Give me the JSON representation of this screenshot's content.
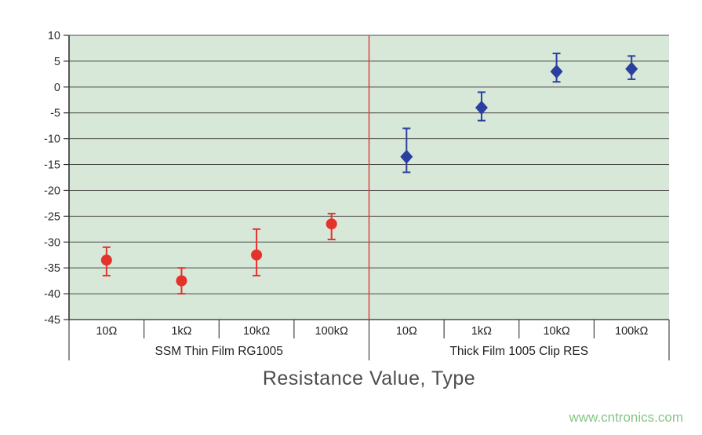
{
  "chart_data": {
    "type": "scatter",
    "title": "",
    "xlabel": "Resistance Value, Type",
    "ylabel": "",
    "ylim": [
      -45,
      10
    ],
    "ytick_step": 5,
    "grid": true,
    "plot_bg": "#d7e8d8",
    "grid_color": "#4a4a4a",
    "axis_color": "#333333",
    "categories": [
      "10Ω",
      "1kΩ",
      "10kΩ",
      "100kΩ",
      "10Ω",
      "1kΩ",
      "10kΩ",
      "100kΩ"
    ],
    "groups": [
      {
        "label": "SSM Thin Film RG1005",
        "start": 0,
        "end": 4
      },
      {
        "label": "Thick Film 1005 Clip RES",
        "start": 4,
        "end": 8
      }
    ],
    "separator": {
      "x": 4,
      "color": "#d94040"
    },
    "series": [
      {
        "name": "SSM Thin Film RG1005",
        "marker": "circle",
        "color": "#e5322b",
        "points": [
          {
            "x": 0,
            "y": -33.5,
            "err_up": 2.5,
            "err_down": 3.0
          },
          {
            "x": 1,
            "y": -37.5,
            "err_up": 2.5,
            "err_down": 2.5
          },
          {
            "x": 2,
            "y": -32.5,
            "err_up": 5.0,
            "err_down": 4.0
          },
          {
            "x": 3,
            "y": -26.5,
            "err_up": 2.0,
            "err_down": 3.0
          }
        ]
      },
      {
        "name": "Thick Film 1005 Clip RES",
        "marker": "diamond",
        "color": "#2b3f9e",
        "points": [
          {
            "x": 4,
            "y": -13.5,
            "err_up": 5.5,
            "err_down": 3.0
          },
          {
            "x": 5,
            "y": -4.0,
            "err_up": 3.0,
            "err_down": 2.5
          },
          {
            "x": 6,
            "y": 3.0,
            "err_up": 3.5,
            "err_down": 2.0
          },
          {
            "x": 7,
            "y": 3.5,
            "err_up": 2.5,
            "err_down": 2.0
          }
        ]
      }
    ]
  },
  "watermark": "www.cntronics.com"
}
